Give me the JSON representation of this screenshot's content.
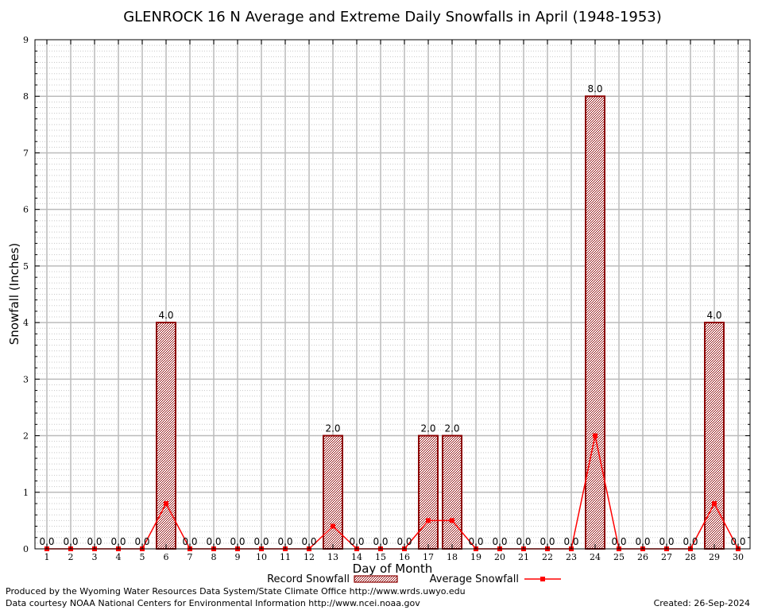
{
  "chart_data": {
    "type": "bar",
    "title": "GLENROCK 16 N Average and Extreme Daily Snowfalls in April (1948-1953)",
    "xlabel": "Day of Month",
    "ylabel": "Snowfall (Inches)",
    "ylim": [
      0,
      9
    ],
    "yticks": [
      "0",
      "1",
      "2",
      "3",
      "4",
      "5",
      "6",
      "7",
      "8",
      "9"
    ],
    "categories": [
      "1",
      "2",
      "3",
      "4",
      "5",
      "6",
      "7",
      "8",
      "9",
      "10",
      "11",
      "12",
      "13",
      "14",
      "15",
      "16",
      "17",
      "18",
      "19",
      "20",
      "21",
      "22",
      "23",
      "24",
      "25",
      "26",
      "27",
      "28",
      "29",
      "30"
    ],
    "grid": true,
    "legend_position": "bottom",
    "series": [
      {
        "name": "Record Snowfall",
        "type": "bar",
        "color": "#8b0000",
        "values": [
          0,
          0,
          0,
          0,
          0,
          4,
          0,
          0,
          0,
          0,
          0,
          0,
          2,
          0,
          0,
          0,
          2,
          2,
          0,
          0,
          0,
          0,
          0,
          8,
          0,
          0,
          0,
          0,
          4,
          0
        ],
        "labels": [
          "0.0",
          "0.0",
          "0.0",
          "0.0",
          "0.0",
          "4.0",
          "0.0",
          "0.0",
          "0.0",
          "0.0",
          "0.0",
          "0.0",
          "2.0",
          "0.0",
          "0.0",
          "0.0",
          "2.0",
          "2.0",
          "0.0",
          "0.0",
          "0.0",
          "0.0",
          "0.0",
          "8.0",
          "0.0",
          "0.0",
          "0.0",
          "0.0",
          "4.0",
          "0.0"
        ]
      },
      {
        "name": "Average Snowfall",
        "type": "line",
        "color": "#ff0000",
        "values": [
          0,
          0,
          0,
          0,
          0,
          0.8,
          0,
          0,
          0,
          0,
          0,
          0,
          0.4,
          0,
          0,
          0,
          0.5,
          0.5,
          0,
          0,
          0,
          0,
          0,
          2.0,
          0,
          0,
          0,
          0,
          0.8,
          0
        ]
      }
    ]
  },
  "footer": {
    "produced_by": "Produced by the Wyoming Water Resources Data System/State Climate Office http://www.wrds.uwyo.edu",
    "data_courtesy": "Data courtesy NOAA National Centers for Environmental Information http://www.ncei.noaa.gov",
    "created": "Created: 26-Sep-2024"
  }
}
